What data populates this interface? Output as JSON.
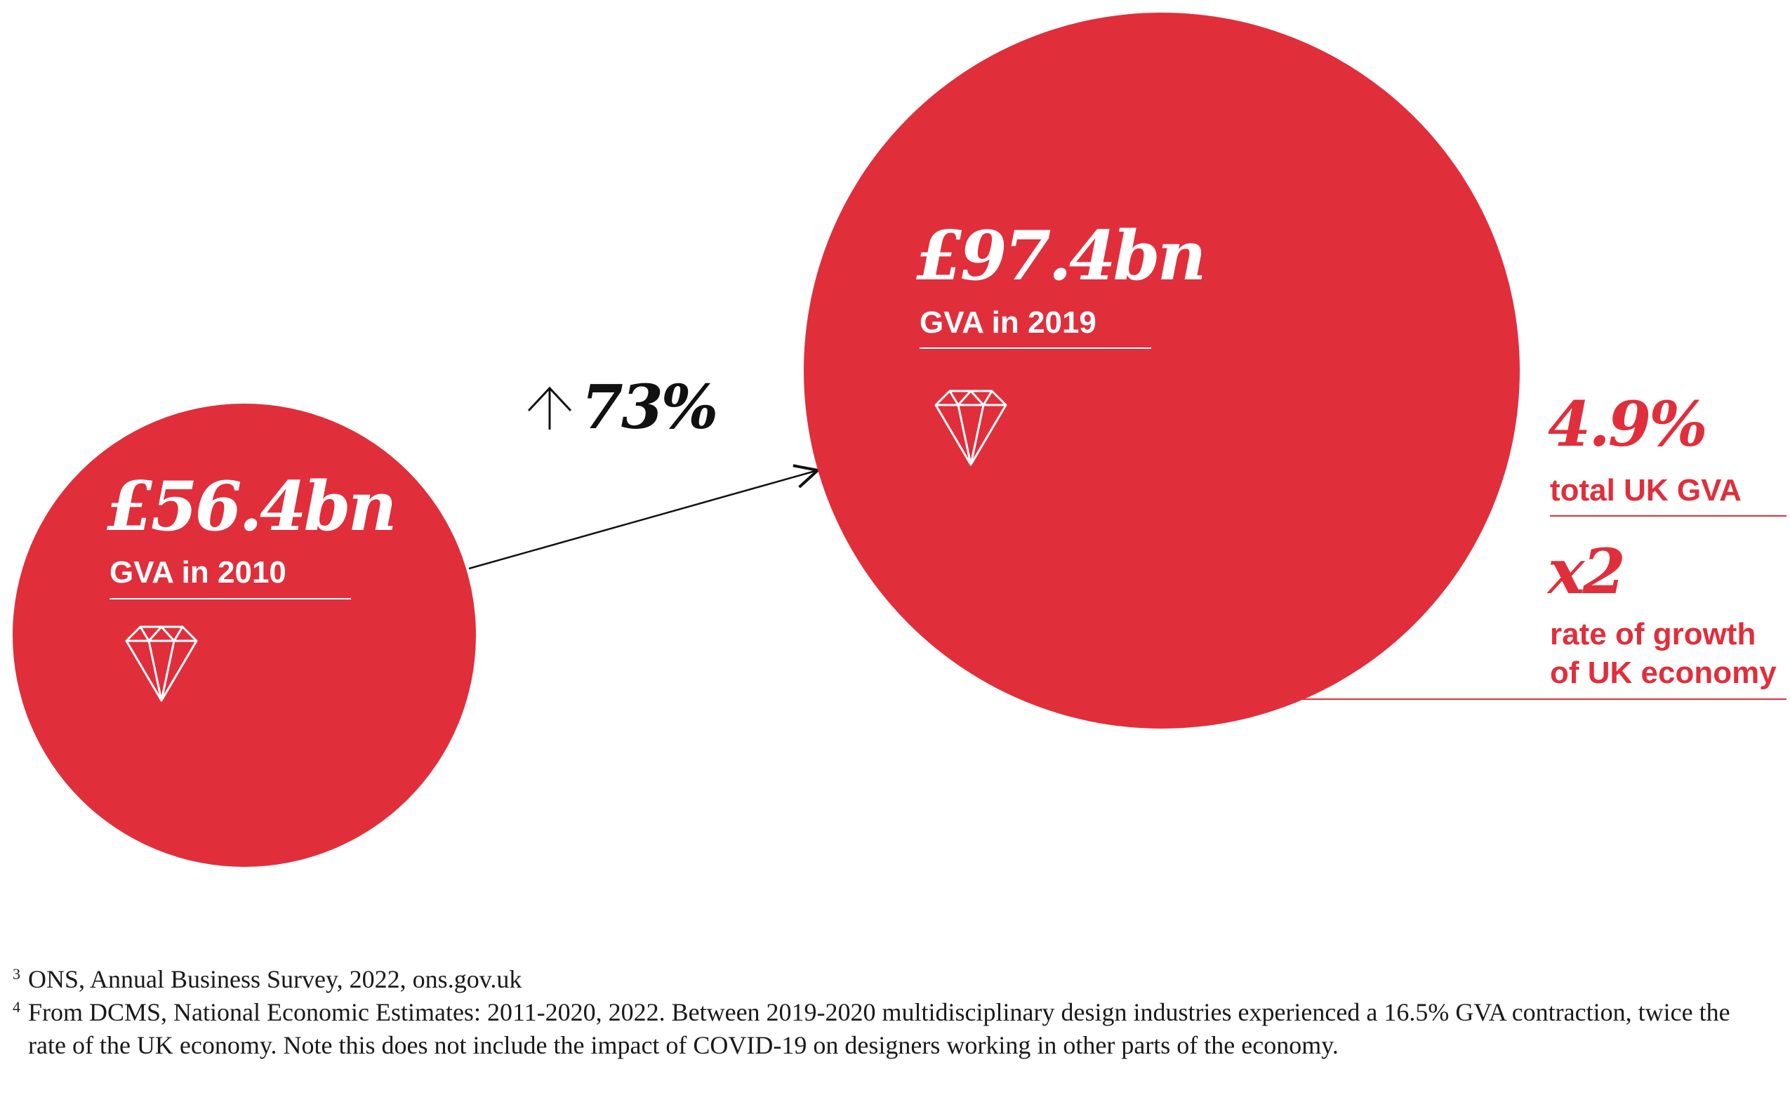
{
  "chart_data": {
    "type": "bubble",
    "colors": {
      "bubble": "#e12e3b",
      "text_dark": "#111111"
    },
    "bubbles": [
      {
        "value": 56.4,
        "value_text": "£56.4bn",
        "label": "GVA in 2010",
        "icon": "diamond-icon"
      },
      {
        "value": 97.4,
        "value_text": "£97.4bn",
        "label": "GVA in 2019",
        "icon": "diamond-icon"
      }
    ],
    "growth": {
      "text": "73%",
      "icon": "up-arrow-icon"
    },
    "stats": [
      {
        "value_text": "4.9%",
        "label_lines": [
          "total UK GVA"
        ]
      },
      {
        "value_text": "x2",
        "label_lines": [
          "rate of growth",
          "of UK economy"
        ]
      }
    ]
  },
  "footnotes": [
    {
      "marker": "3",
      "text": "ONS, Annual Business Survey, 2022, ons.gov.uk"
    },
    {
      "marker": "4",
      "text": "From DCMS, National Economic Estimates: 2011-2020, 2022. Between 2019-2020 multidisciplinary design industries experienced a 16.5% GVA contraction, twice the rate of the UK economy. Note this does not include the impact of COVID-19 on designers working in other parts of the economy."
    }
  ]
}
